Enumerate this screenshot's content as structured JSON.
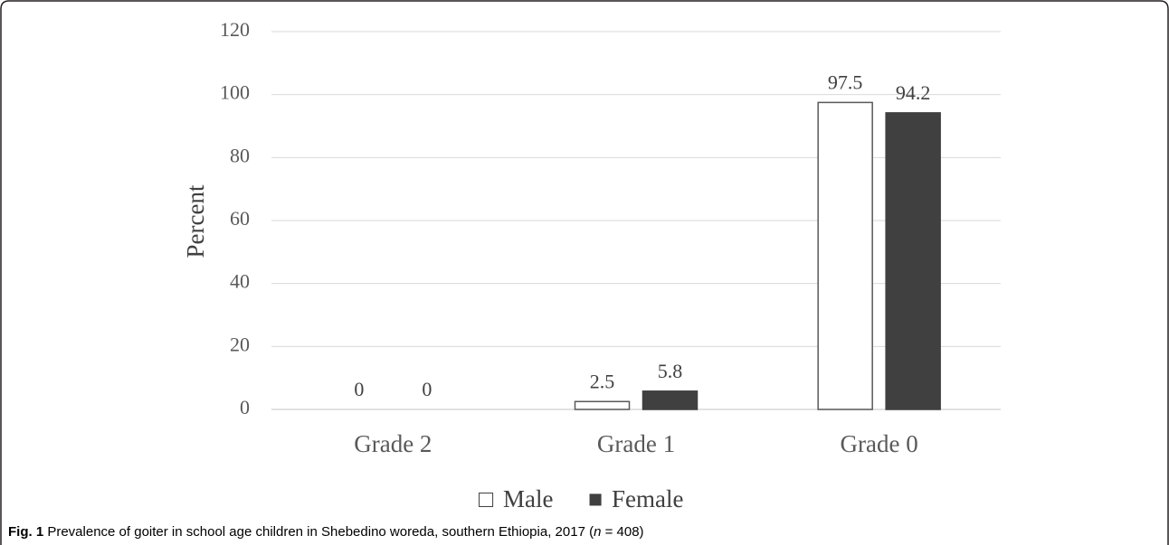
{
  "chart_data": {
    "type": "bar",
    "categories": [
      "Grade 2",
      "Grade 1",
      "Grade 0"
    ],
    "series": [
      {
        "name": "Male",
        "values": [
          0,
          2.5,
          97.5
        ],
        "color": "#ffffff",
        "stroke": "#595959"
      },
      {
        "name": "Female",
        "values": [
          0,
          5.8,
          94.2
        ],
        "color": "#404040",
        "stroke": "#404040"
      }
    ],
    "data_labels": [
      [
        "0",
        "2.5",
        "97.5"
      ],
      [
        "0",
        "5.8",
        "94.2"
      ]
    ],
    "ylabel": "Percent",
    "ylim": [
      0,
      120
    ],
    "yticks": [
      "0",
      "20",
      "40",
      "60",
      "80",
      "100",
      "120"
    ],
    "grid": true,
    "legend_position": "bottom",
    "legend_symbols": [
      "□",
      "■"
    ]
  },
  "caption": {
    "label": "Fig. 1",
    "text_before_italic": " Prevalence of goiter in school age children in Shebedino woreda, southern Ethiopia, 2017 (",
    "italic": "n",
    "text_after_italic": " = 408)"
  }
}
